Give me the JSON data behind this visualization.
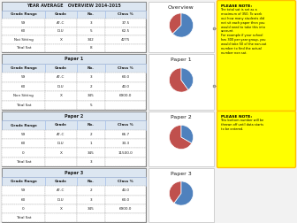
{
  "overview_title": "YEAR AVERAGE   OVERVIEW 2014-2015",
  "overview_headers": [
    "Grade Range",
    "Grade",
    "No.",
    "Class %"
  ],
  "overview_rows": [
    [
      "59",
      "A*-C",
      "3",
      "37.5"
    ],
    [
      "60",
      "D-U",
      "5",
      "62.5"
    ],
    [
      "Not Sitting",
      "X",
      "342",
      "4275"
    ],
    [
      "Total Sat",
      "",
      "8",
      ""
    ]
  ],
  "paper1_title": "Paper 1",
  "paper1_headers": [
    "Grade Range",
    "Grade",
    "No.",
    "Class %"
  ],
  "paper1_rows": [
    [
      "59",
      "A*-C",
      "3",
      "60.0"
    ],
    [
      "60",
      "D-U",
      "2",
      "40.0"
    ],
    [
      "Non Sitting",
      "X",
      "345",
      "6900.0"
    ],
    [
      "Total Sat",
      "",
      "5",
      ""
    ]
  ],
  "paper2_title": "Paper 2",
  "paper2_headers": [
    "Grade Range",
    "Grade",
    "No.",
    "Class %"
  ],
  "paper2_rows": [
    [
      "59",
      "A*-C",
      "2",
      "66.7"
    ],
    [
      "60",
      "D-U",
      "1",
      "33.3"
    ],
    [
      "0",
      "X",
      "345",
      "11500.0"
    ],
    [
      "Total Sat",
      "",
      "3",
      ""
    ]
  ],
  "paper3_title": "Paper 3",
  "paper3_headers": [
    "Grade Range",
    "Grade",
    "No.",
    "Class %"
  ],
  "paper3_rows": [
    [
      "59",
      "A*-C",
      "2",
      "40.0"
    ],
    [
      "60",
      "D-U",
      "3",
      "60.0"
    ],
    [
      "0",
      "X",
      "345",
      "6900.0"
    ],
    [
      "Total Sat",
      "",
      "",
      ""
    ]
  ],
  "note1_title": "PLEASE NOTE:",
  "note1_text": "The total sat is set as a\nmaximum of 350. To work\nout how many students did\nnot sit each paper then you\nwould need to take this into\naccount.\nFor example if your school\nhas 300 per year group, you\nwould take 50 of the non-sat\nnumber to find the actual\nnumber non sat.",
  "note2_title": "PLEASE NOTE:",
  "note2_text": "This bottom number will be\nthrown off until data starts\nto be entered.",
  "pie_overview": [
    37.5,
    62.5
  ],
  "pie_paper1": [
    60.0,
    40.0
  ],
  "pie_paper2": [
    66.7,
    33.3
  ],
  "pie_paper3": [
    40.0,
    60.0
  ],
  "pie_colors": [
    "#c0504d",
    "#4f81bd"
  ],
  "bg_color": "#f2f2f2",
  "table_bg": "#ffffff",
  "table_border": "#7f7f7f",
  "table_header_bg": "#dce6f1",
  "note_bg": "#ffff00",
  "note_border": "#ffc000",
  "pie_box_bg": "#ffffff",
  "pie_box_border": "#bfbfbf"
}
